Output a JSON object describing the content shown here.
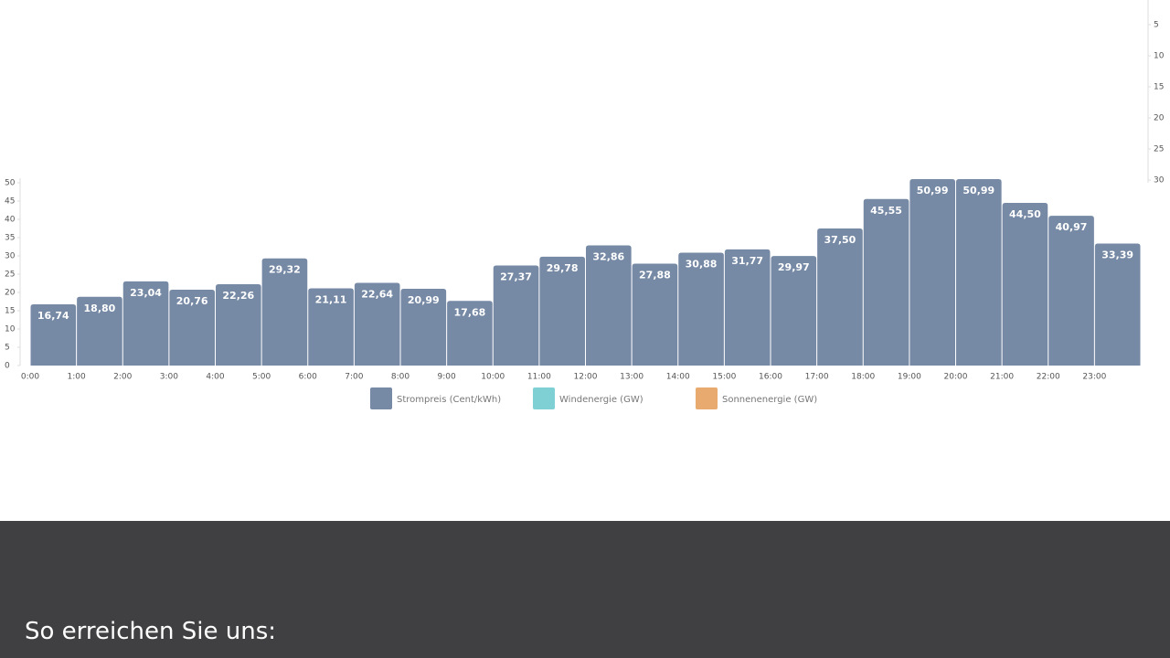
{
  "chart_data": {
    "type": "bar",
    "categories": [
      "0:00",
      "1:00",
      "2:00",
      "3:00",
      "4:00",
      "5:00",
      "6:00",
      "7:00",
      "8:00",
      "9:00",
      "10:00",
      "11:00",
      "12:00",
      "13:00",
      "14:00",
      "15:00",
      "16:00",
      "17:00",
      "18:00",
      "19:00",
      "20:00",
      "21:00",
      "22:00",
      "23:00"
    ],
    "series": [
      {
        "name": "Strompreis (Cent/kWh)",
        "color": "#7689a5",
        "values": [
          16.74,
          18.8,
          23.04,
          20.76,
          22.26,
          29.32,
          21.11,
          22.64,
          20.99,
          17.68,
          27.37,
          29.78,
          32.86,
          27.88,
          30.88,
          31.77,
          29.97,
          37.5,
          45.55,
          50.99,
          50.99,
          44.5,
          40.97,
          33.39
        ],
        "value_labels": [
          "16,74",
          "18,80",
          "23,04",
          "20,76",
          "22,26",
          "29,32",
          "21,11",
          "22,64",
          "20,99",
          "17,68",
          "27,37",
          "29,78",
          "32,86",
          "27,88",
          "30,88",
          "31,77",
          "29,97",
          "37,50",
          "45,55",
          "50,99",
          "50,99",
          "44,50",
          "40,97",
          "33,39"
        ]
      },
      {
        "name": "Windenergie (GW)",
        "color": "#7fd0d4",
        "axis": "y2",
        "values": [
          null,
          null,
          null,
          null,
          null,
          null,
          null,
          null,
          null,
          null,
          null,
          null,
          null,
          null,
          null,
          null,
          null,
          null,
          null,
          null,
          null,
          null,
          null,
          null
        ]
      },
      {
        "name": "Sonnenenergie (GW)",
        "color": "#e8aa6f",
        "axis": "y2",
        "values": [
          null,
          null,
          null,
          null,
          null,
          null,
          null,
          null,
          null,
          null,
          null,
          null,
          null,
          null,
          null,
          null,
          null,
          null,
          null,
          null,
          null,
          null,
          null,
          null
        ]
      }
    ],
    "ylim": [
      0,
      50
    ],
    "yticks": [
      0,
      5,
      10,
      15,
      20,
      25,
      30,
      35,
      40,
      45,
      50
    ],
    "y2lim": [
      0,
      30
    ],
    "y2ticks": [
      5,
      10,
      15,
      20,
      25,
      30
    ],
    "y2_reversed": true
  },
  "footer": {
    "heading": "So erreichen Sie uns:"
  }
}
